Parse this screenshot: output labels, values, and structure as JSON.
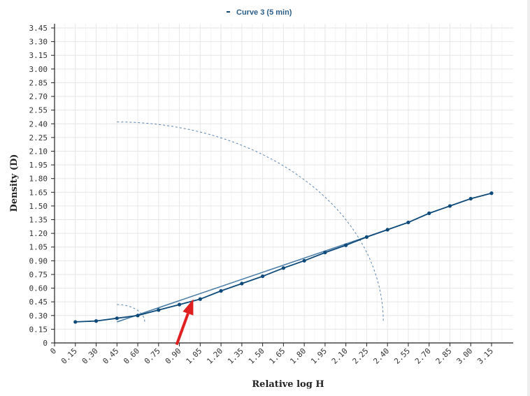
{
  "chart_data": {
    "type": "line",
    "title": "",
    "xlabel": "Relative log H",
    "ylabel": "Density (D)",
    "xlim": [
      0,
      3.3
    ],
    "ylim": [
      0,
      3.45
    ],
    "x_ticks": [
      "0",
      "0.15",
      "0.30",
      "0.45",
      "0.60",
      "0.75",
      "0.90",
      "1.05",
      "1.20",
      "1.35",
      "1.50",
      "1.65",
      "1.80",
      "1.95",
      "2.10",
      "2.25",
      "2.40",
      "2.55",
      "2.70",
      "2.85",
      "3.00",
      "3.15"
    ],
    "y_ticks": [
      "0",
      "0.15",
      "0.30",
      "0.45",
      "0.60",
      "0.75",
      "0.90",
      "1.05",
      "1.20",
      "1.35",
      "1.50",
      "1.65",
      "1.80",
      "1.95",
      "2.10",
      "2.25",
      "2.40",
      "2.55",
      "2.70",
      "2.85",
      "3.00",
      "3.15",
      "3.30",
      "3.45"
    ],
    "grid": true,
    "legend_position": "top-center",
    "series": [
      {
        "name": "Curve 3 (5 min)",
        "color": "#0d4a7a",
        "points": [
          [
            0.15,
            0.23
          ],
          [
            0.3,
            0.24
          ],
          [
            0.45,
            0.27
          ],
          [
            0.6,
            0.3
          ],
          [
            0.75,
            0.36
          ],
          [
            0.9,
            0.42
          ],
          [
            1.05,
            0.48
          ],
          [
            1.2,
            0.57
          ],
          [
            1.35,
            0.65
          ],
          [
            1.5,
            0.73
          ],
          [
            1.65,
            0.82
          ],
          [
            1.8,
            0.9
          ],
          [
            1.95,
            0.99
          ],
          [
            2.1,
            1.07
          ],
          [
            2.25,
            1.16
          ],
          [
            2.4,
            1.24
          ],
          [
            2.55,
            1.32
          ],
          [
            2.7,
            1.42
          ],
          [
            2.85,
            1.5
          ],
          [
            3.0,
            1.58
          ],
          [
            3.15,
            1.64
          ]
        ]
      }
    ],
    "tangent_line": {
      "color": "#4d7fa8",
      "points": [
        [
          0.45,
          0.23
        ],
        [
          2.4,
          1.24
        ]
      ]
    },
    "annotations": [
      {
        "type": "dashed-arc",
        "color": "#5b86b0",
        "center": [
          0.45,
          0.23
        ],
        "rx": 1.92,
        "ry": 2.19,
        "from_deg": 90,
        "to_deg": 0
      },
      {
        "type": "dashed-arc",
        "color": "#5b86b0",
        "center": [
          0.45,
          0.23
        ],
        "rx": 0.2,
        "ry": 0.19,
        "from_deg": 90,
        "to_deg": 0
      },
      {
        "type": "arrow",
        "color": "#e02020",
        "from": [
          0.88,
          -0.02
        ],
        "to": [
          1.0,
          0.48
        ]
      }
    ]
  }
}
